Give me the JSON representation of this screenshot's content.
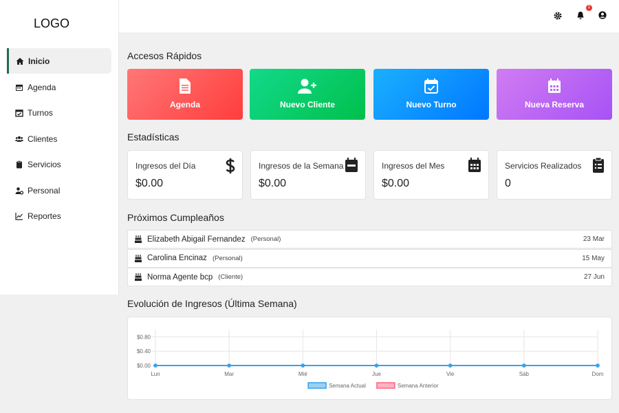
{
  "header": {
    "logo": "LOGO",
    "notification_count": "1"
  },
  "sidebar": {
    "items": [
      "Inicio",
      "Agenda",
      "Turnos",
      "Clientes",
      "Servicios",
      "Personal",
      "Reportes"
    ]
  },
  "quick_access": {
    "title": "Accesos Rápidos",
    "items": [
      "Agenda",
      "Nuevo Cliente",
      "Nuevo Turno",
      "Nueva Reserva"
    ]
  },
  "stats": {
    "title": "Estadísticas",
    "items": [
      {
        "label": "Ingresos del Día",
        "value": "$0.00"
      },
      {
        "label": "Ingresos de la Semana",
        "value": "$0.00"
      },
      {
        "label": "Ingresos del Mes",
        "value": "$0.00"
      },
      {
        "label": "Servicios Realizados",
        "value": "0"
      }
    ]
  },
  "birthdays": {
    "title": "Próximos Cumpleaños",
    "items": [
      {
        "name": "Elizabeth Abigail Fernandez",
        "type": "(Personal)",
        "date": "23 Mar"
      },
      {
        "name": "Carolina Encinaz",
        "type": "(Personal)",
        "date": "15 May"
      },
      {
        "name": "Norma Agente bcp",
        "type": "(Cliente)",
        "date": "27 Jun"
      }
    ]
  },
  "chart_data": {
    "type": "line",
    "title": "Evolución de Ingresos (Última Semana)",
    "categories": [
      "Lun",
      "Mar",
      "Mié",
      "Jue",
      "Vie",
      "Sáb",
      "Dom"
    ],
    "series": [
      {
        "name": "Semana Actual",
        "color": "#36a2eb",
        "fill": "#9ad0f5",
        "values": [
          0,
          0,
          0,
          0,
          0,
          0,
          0
        ]
      },
      {
        "name": "Semana Anterior",
        "color": "#ff6384",
        "fill": "#ffb1c1",
        "values": [
          0,
          0,
          0,
          0,
          0,
          0,
          0
        ]
      }
    ],
    "ylim": [
      0,
      1
    ],
    "yticks": [
      {
        "value": 0,
        "label": "$0.00"
      },
      {
        "value": 0.4,
        "label": "$0.40"
      },
      {
        "value": 0.8,
        "label": "$0.80"
      }
    ],
    "grid": true,
    "legend": "bottom"
  }
}
